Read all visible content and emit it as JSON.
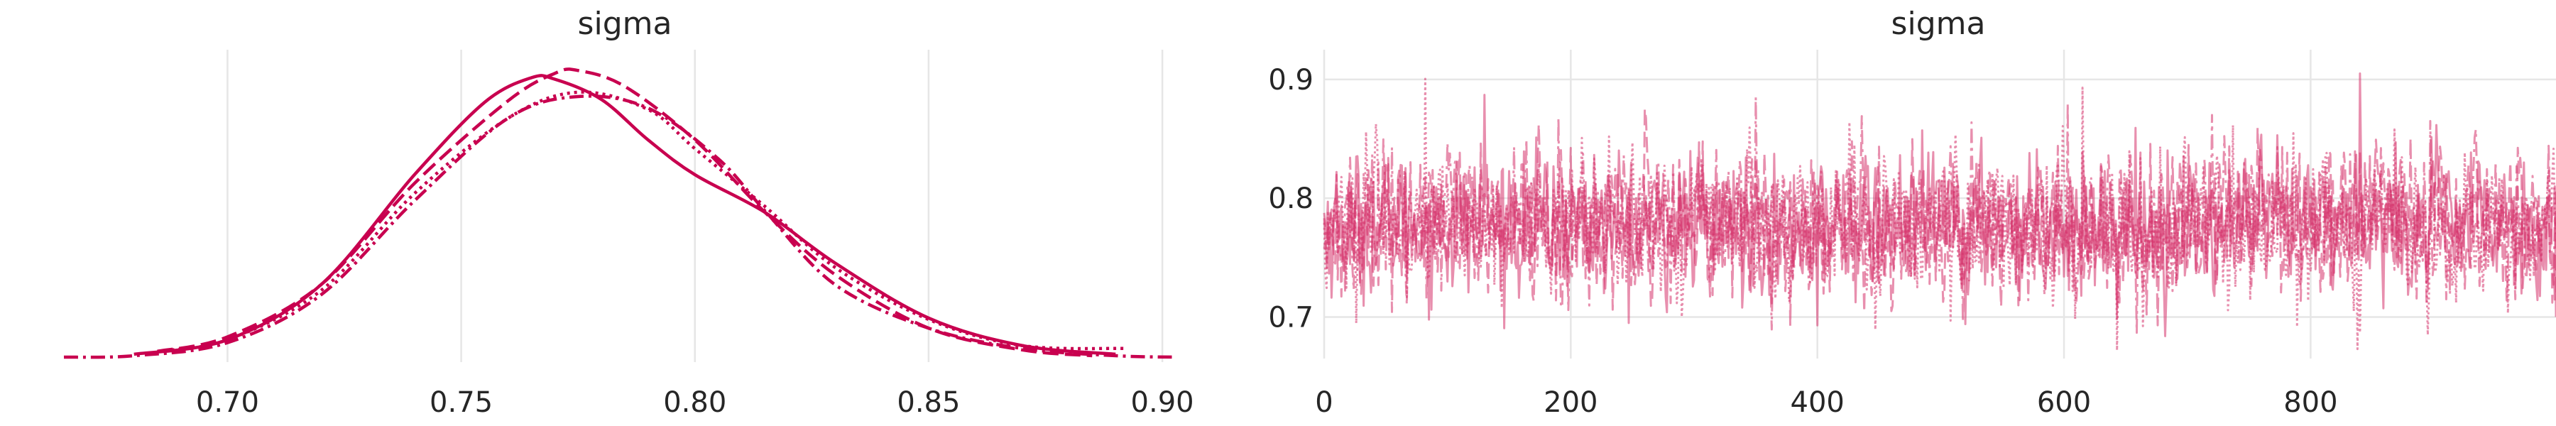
{
  "chart_data": [
    {
      "type": "line",
      "plot": "density",
      "title": "sigma",
      "xlim": [
        0.665,
        0.905
      ],
      "x_ticks": [
        "0.70",
        "0.75",
        "0.80",
        "0.85",
        "0.90"
      ],
      "x_tick_values": [
        0.7,
        0.75,
        0.8,
        0.85,
        0.9
      ],
      "y_axis_visible": false,
      "grid": "vertical",
      "color": "#c8004f",
      "series": [
        {
          "line_style": "solid",
          "x": [
            0.68,
            0.7,
            0.72,
            0.74,
            0.755,
            0.765,
            0.77,
            0.78,
            0.79,
            0.8,
            0.815,
            0.83,
            0.85,
            0.87,
            0.89
          ],
          "density": [
            0.2,
            1.2,
            5.0,
            12.6,
            17.6,
            19.3,
            19.2,
            17.8,
            15.0,
            12.6,
            10.0,
            6.5,
            2.7,
            0.8,
            0.2
          ]
        },
        {
          "line_style": "dashed",
          "x": [
            0.685,
            0.7,
            0.72,
            0.74,
            0.76,
            0.77,
            0.775,
            0.785,
            0.8,
            0.815,
            0.83,
            0.85,
            0.87,
            0.885
          ],
          "density": [
            0.4,
            1.4,
            5.0,
            12.0,
            17.7,
            19.6,
            19.8,
            18.7,
            15.0,
            10.0,
            5.7,
            2.0,
            0.5,
            0.1
          ]
        },
        {
          "line_style": "dotted",
          "x": [
            0.685,
            0.7,
            0.72,
            0.74,
            0.76,
            0.775,
            0.79,
            0.8,
            0.815,
            0.83,
            0.85,
            0.87,
            0.892
          ],
          "density": [
            0.4,
            1.2,
            4.6,
            11.3,
            16.5,
            18.3,
            17.1,
            14.4,
            10.4,
            6.2,
            2.6,
            0.8,
            0.6
          ]
        },
        {
          "line_style": "dashdot",
          "x": [
            0.665,
            0.68,
            0.7,
            0.72,
            0.74,
            0.76,
            0.775,
            0.79,
            0.805,
            0.815,
            0.83,
            0.85,
            0.87,
            0.89,
            0.903
          ],
          "density": [
            0.0,
            0.1,
            1.0,
            4.3,
            10.8,
            16.5,
            18.0,
            17.2,
            13.7,
            10.1,
            5.0,
            2.0,
            0.6,
            0.1,
            0.0
          ]
        }
      ]
    },
    {
      "type": "line",
      "plot": "trace",
      "title": "sigma",
      "xlim": [
        0,
        999
      ],
      "ylim": [
        0.665,
        0.925
      ],
      "x_ticks": [
        "0",
        "200",
        "400",
        "600",
        "800"
      ],
      "x_tick_values": [
        0,
        200,
        400,
        600,
        800
      ],
      "y_ticks": [
        "0.7",
        "0.8",
        "0.9"
      ],
      "y_tick_values": [
        0.7,
        0.8,
        0.9
      ],
      "grid": "both",
      "color": "#d6336c",
      "draws": 1000,
      "chains": 4,
      "approx_mean": 0.777,
      "approx_sd": 0.029,
      "observed_range": [
        0.672,
        0.905
      ],
      "series": [
        {
          "line_style": "solid",
          "highlights": [
            [
              130,
              0.887
            ],
            [
              840,
              0.905
            ],
            [
              400,
              0.693
            ],
            [
              520,
              0.694
            ],
            [
              1000,
              0.7
            ]
          ]
        },
        {
          "line_style": "dashed",
          "highlights": [
            [
              260,
              0.875
            ],
            [
              460,
              0.705
            ]
          ]
        },
        {
          "line_style": "dotted",
          "highlights": [
            [
              615,
              0.893
            ],
            [
              838,
              0.673
            ],
            [
              895,
              0.685
            ],
            [
              290,
              0.7
            ]
          ]
        },
        {
          "line_style": "dashdot",
          "highlights": [
            [
              350,
              0.885
            ],
            [
              720,
              0.87
            ]
          ]
        }
      ]
    }
  ]
}
